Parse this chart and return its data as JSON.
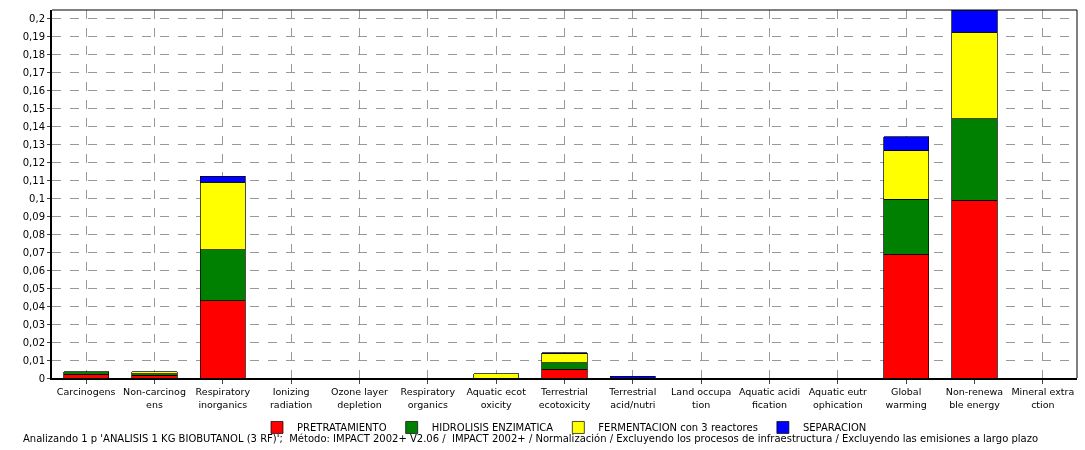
{
  "chart_data": {
    "type": "bar",
    "stacked": true,
    "categories": [
      "Carcinogens",
      "Non-carcinog\nens",
      "Respiratory\ninorganics",
      "Ionizing\nradiation",
      "Ozone layer\ndepletion",
      "Respiratory\norganics",
      "Aquatic ecot\noxicity",
      "Terrestrial\necotoxicity",
      "Terrestrial\nacid/nutri",
      "Land occupa\ntion",
      "Aquatic acidi\nfication",
      "Aquatic eutr\nophication",
      "Global\nwarming",
      "Non-renewa\nble energy",
      "Mineral extra\nction"
    ],
    "series": [
      {
        "name": "PRETRATAMIENTO",
        "color": "#ff0000",
        "values": [
          0.002,
          0.0015,
          0.043,
          null,
          null,
          null,
          null,
          0.005,
          null,
          null,
          null,
          null,
          0.069,
          0.099,
          null
        ]
      },
      {
        "name": "HIDROLISIS ENZIMATICA",
        "color": "#008000",
        "values": [
          0.0015,
          0.001,
          0.0285,
          null,
          null,
          null,
          null,
          0.0035,
          null,
          null,
          null,
          null,
          0.0305,
          0.0455,
          null
        ]
      },
      {
        "name": "FERMENTACION con 3 reactores",
        "color": "#ffff00",
        "values": [
          null,
          0.001,
          0.0375,
          null,
          null,
          null,
          0.0025,
          0.005,
          null,
          null,
          null,
          null,
          0.027,
          0.048,
          null
        ]
      },
      {
        "name": "SEPARACION",
        "color": "#0000ff",
        "values": [
          null,
          null,
          0.0035,
          null,
          null,
          null,
          null,
          0.0005,
          0.001,
          null,
          null,
          null,
          0.008,
          0.0125,
          null
        ]
      }
    ],
    "ylim": [
      0,
      0.205
    ],
    "yticks": [
      0,
      {
        "value": 0.01,
        "label": "0,01"
      },
      {
        "value": 0.02,
        "label": "0,02"
      },
      {
        "value": 0.03,
        "label": "0,03"
      },
      {
        "value": 0.04,
        "label": "0,04"
      },
      {
        "value": 0.05,
        "label": "0,05"
      },
      {
        "value": 0.06,
        "label": "0,06"
      },
      {
        "value": 0.07,
        "label": "0,07"
      },
      {
        "value": 0.08,
        "label": "0,08"
      },
      {
        "value": 0.09,
        "label": "0,09"
      },
      {
        "value": 0.1,
        "label": "0,1"
      },
      {
        "value": 0.11,
        "label": "0,11"
      },
      {
        "value": 0.12,
        "label": "0,12"
      },
      {
        "value": 0.13,
        "label": "0,13"
      },
      {
        "value": 0.14,
        "label": "0,14"
      },
      {
        "value": 0.15,
        "label": "0,15"
      },
      {
        "value": 0.16,
        "label": "0,16"
      },
      {
        "value": 0.17,
        "label": "0,17"
      },
      {
        "value": 0.18,
        "label": "0,18"
      },
      {
        "value": 0.19,
        "label": "0,19"
      },
      {
        "value": 0.2,
        "label": "0,2"
      }
    ],
    "grid": true,
    "legend": "bottom",
    "annotations": [
      "Analizando 1 p 'ANALISIS 1 KG BIOBUTANOL (3 RF)';  Método: IMPACT 2002+ V2.06 /  IMPACT 2002+ / Normalización / Excluyendo los procesos de infraestructura / Excluyendo las emisiones a largo plazo"
    ]
  }
}
